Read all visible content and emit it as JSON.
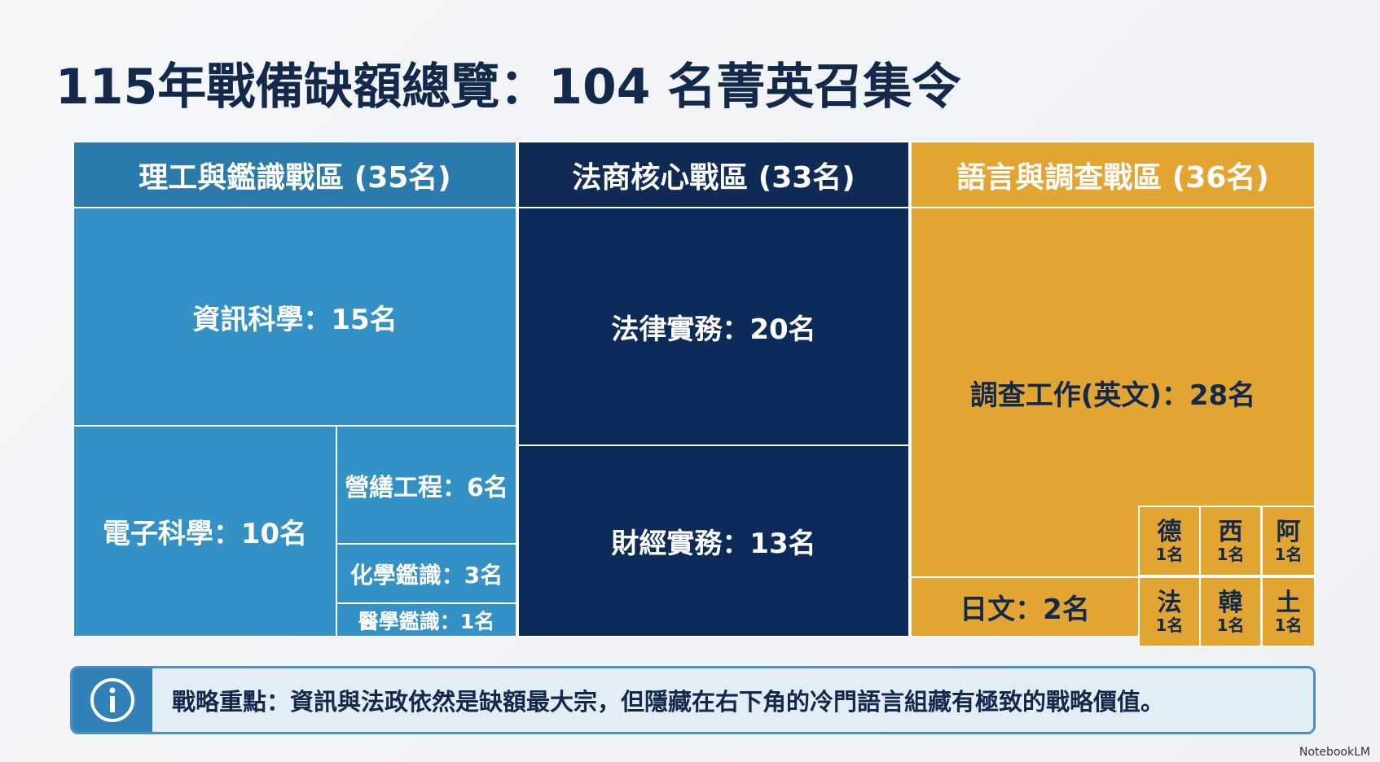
{
  "title": "115年戰備缺額總覽：104 名菁英召集令",
  "zones": [
    {
      "header": "理工與鑑識戰區 (35名)",
      "cells": [
        "資訊科學：15名",
        "電子科學：10名",
        "營繕工程：6名",
        "化學鑑識：3名",
        "醫學鑑識：1名"
      ]
    },
    {
      "header": "法商核心戰區 (33名)",
      "cells": [
        "法律實務：20名",
        "財經實務：13名"
      ]
    },
    {
      "header": "語言與調查戰區 (36名)",
      "cells": [
        "調查工作(英文)：28名",
        "日文：2名"
      ],
      "small_cells": [
        {
          "name": "德",
          "count": "1名"
        },
        {
          "name": "西",
          "count": "1名"
        },
        {
          "name": "阿",
          "count": "1名"
        },
        {
          "name": "法",
          "count": "1名"
        },
        {
          "name": "韓",
          "count": "1名"
        },
        {
          "name": "土",
          "count": "1名"
        }
      ]
    }
  ],
  "note": "戰略重點：資訊與法政依然是缺額最大宗，但隱藏在右下角的冷門語言組藏有極致的戰略價值。",
  "footer": "NotebookLM"
}
